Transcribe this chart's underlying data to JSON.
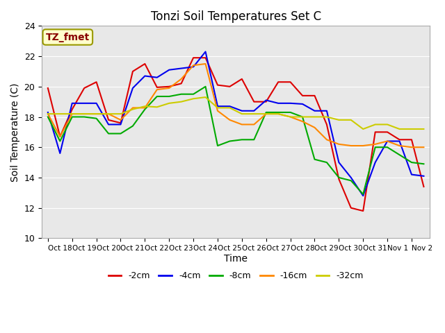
{
  "title": "Tonzi Soil Temperatures Set C",
  "xlabel": "Time",
  "ylabel": "Soil Temperature (C)",
  "ylim": [
    10,
    24
  ],
  "background_color": "#ffffff",
  "plot_bg_color": "#e8e8e8",
  "annotation_text": "TZ_fmet",
  "annotation_bg": "#ffffcc",
  "annotation_border": "#999900",
  "annotation_text_color": "#880000",
  "xtick_positions": [
    0,
    2,
    4,
    6,
    8,
    10,
    12,
    14,
    16,
    18,
    20,
    22,
    24,
    26,
    28,
    30
  ],
  "xtick_labels": [
    "Oct 18",
    "Oct 19",
    "Oct 20",
    "Oct 21",
    "Oct 22",
    "Oct 23",
    "Oct 24",
    "Oct 25",
    "Oct 26",
    "Oct 27",
    "Oct 28",
    "Oct 29",
    "Oct 30",
    "Oct 31",
    "Nov 1",
    "Nov 2"
  ],
  "series": {
    "-2cm": {
      "color": "#dd0000",
      "data": [
        19.9,
        16.7,
        18.5,
        19.9,
        20.3,
        17.8,
        17.6,
        21.0,
        21.5,
        19.95,
        20.0,
        20.2,
        21.9,
        21.9,
        20.1,
        20.0,
        20.5,
        19.0,
        19.0,
        20.3,
        20.3,
        19.4,
        19.4,
        17.5,
        13.9,
        12.0,
        11.8,
        17.0,
        17.0,
        16.5,
        16.5,
        13.4
      ]
    },
    "-4cm": {
      "color": "#0000ee",
      "data": [
        18.3,
        15.6,
        18.9,
        18.9,
        18.9,
        17.5,
        17.5,
        19.9,
        20.7,
        20.6,
        21.1,
        21.2,
        21.3,
        22.3,
        18.7,
        18.7,
        18.4,
        18.4,
        19.1,
        18.9,
        18.9,
        18.85,
        18.4,
        18.4,
        15.0,
        14.0,
        12.8,
        15.0,
        16.4,
        16.4,
        14.2,
        14.1
      ]
    },
    "-8cm": {
      "color": "#00aa00",
      "data": [
        18.0,
        16.4,
        18.0,
        18.0,
        17.9,
        16.9,
        16.9,
        17.4,
        18.5,
        19.35,
        19.35,
        19.5,
        19.5,
        20.0,
        16.1,
        16.4,
        16.5,
        16.5,
        18.3,
        18.3,
        18.3,
        18.0,
        15.2,
        15.0,
        14.0,
        13.8,
        12.9,
        16.0,
        16.0,
        15.5,
        15.0,
        14.9
      ]
    },
    "-16cm": {
      "color": "#ff8800",
      "data": [
        18.2,
        16.7,
        18.2,
        18.2,
        18.2,
        18.2,
        17.8,
        18.6,
        18.6,
        19.8,
        19.9,
        20.5,
        21.4,
        21.5,
        18.4,
        17.8,
        17.5,
        17.5,
        18.2,
        18.2,
        18.0,
        17.7,
        17.3,
        16.5,
        16.2,
        16.1,
        16.1,
        16.2,
        16.4,
        16.1,
        16.0,
        16.0
      ]
    },
    "-32cm": {
      "color": "#cccc00",
      "data": [
        18.2,
        18.2,
        18.2,
        18.2,
        18.2,
        18.2,
        18.2,
        18.5,
        18.7,
        18.65,
        18.9,
        19.0,
        19.2,
        19.3,
        18.6,
        18.6,
        18.2,
        18.2,
        18.2,
        18.2,
        18.0,
        18.0,
        18.0,
        18.0,
        17.8,
        17.8,
        17.2,
        17.5,
        17.5,
        17.2,
        17.2,
        17.2
      ]
    }
  },
  "legend_labels": [
    "-2cm",
    "-4cm",
    "-8cm",
    "-16cm",
    "-32cm"
  ],
  "legend_colors": [
    "#dd0000",
    "#0000ee",
    "#00aa00",
    "#ff8800",
    "#cccc00"
  ]
}
